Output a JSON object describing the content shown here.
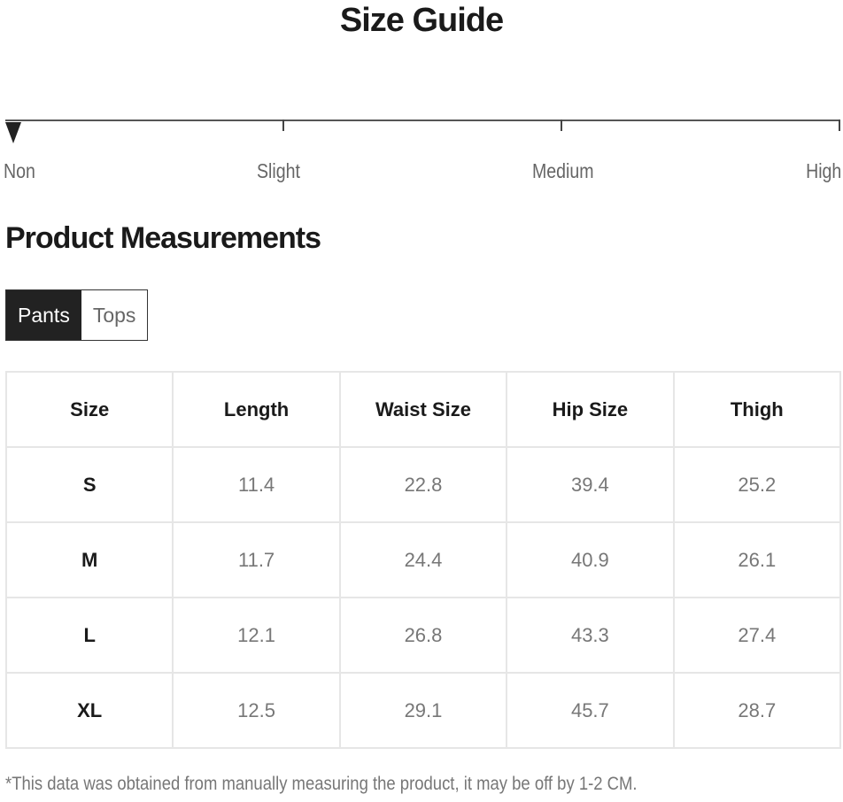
{
  "title": "Size Guide",
  "stretch_scale": {
    "levels": [
      "Non",
      "Slight",
      "Medium",
      "High"
    ],
    "selected": "Non"
  },
  "section_title": "Product Measurements",
  "tabs": [
    {
      "label": "Pants",
      "active": true
    },
    {
      "label": "Tops",
      "active": false
    }
  ],
  "table": {
    "headers": [
      "Size",
      "Length",
      "Waist Size",
      "Hip Size",
      "Thigh"
    ],
    "rows": [
      [
        "S",
        "11.4",
        "22.8",
        "39.4",
        "25.2"
      ],
      [
        "M",
        "11.7",
        "24.4",
        "40.9",
        "26.1"
      ],
      [
        "L",
        "12.1",
        "26.8",
        "43.3",
        "27.4"
      ],
      [
        "XL",
        "12.5",
        "29.1",
        "45.7",
        "28.7"
      ]
    ]
  },
  "note": "*This data was obtained from manually measuring the product, it may be off by 1-2 CM."
}
